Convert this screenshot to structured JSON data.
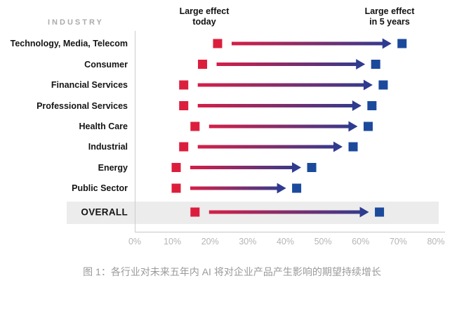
{
  "header": {
    "industry_label": "INDUSTRY",
    "today_label": "Large effect\ntoday",
    "future_label": "Large effect\nin 5 years"
  },
  "caption": "图 1：各行业对未来五年内 AI 将对企业产品产生影响的期望持续增长",
  "colors": {
    "today_marker": "#dc1e3d",
    "future_marker": "#1b4a9c",
    "arrow_start": "#d41f47",
    "arrow_end": "#2e3b8f",
    "overall_band": "#ececec",
    "axis_line": "#c7c7c7",
    "tick_text": "#b5b5b5"
  },
  "chart_data": {
    "type": "scatter",
    "subtype": "dumbbell-arrow",
    "title": "",
    "xlabel": "",
    "ylabel": "INDUSTRY",
    "xlim": [
      0,
      80
    ],
    "x_tick_labels": [
      "0%",
      "10%",
      "20%",
      "30%",
      "40%",
      "50%",
      "60%",
      "70%",
      "80%"
    ],
    "grid": false,
    "legend_position": "top (column headers)",
    "categories": [
      "Technology, Media, Telecom",
      "Consumer",
      "Financial Services",
      "Professional Services",
      "Health Care",
      "Industrial",
      "Energy",
      "Public Sector",
      "OVERALL"
    ],
    "series": [
      {
        "name": "Large effect today",
        "values": [
          22,
          18,
          13,
          13,
          16,
          13,
          11,
          11,
          16
        ]
      },
      {
        "name": "Large effect in 5 years",
        "values": [
          71,
          64,
          66,
          63,
          62,
          58,
          47,
          43,
          65
        ]
      }
    ],
    "highlighted_category": "OVERALL"
  }
}
